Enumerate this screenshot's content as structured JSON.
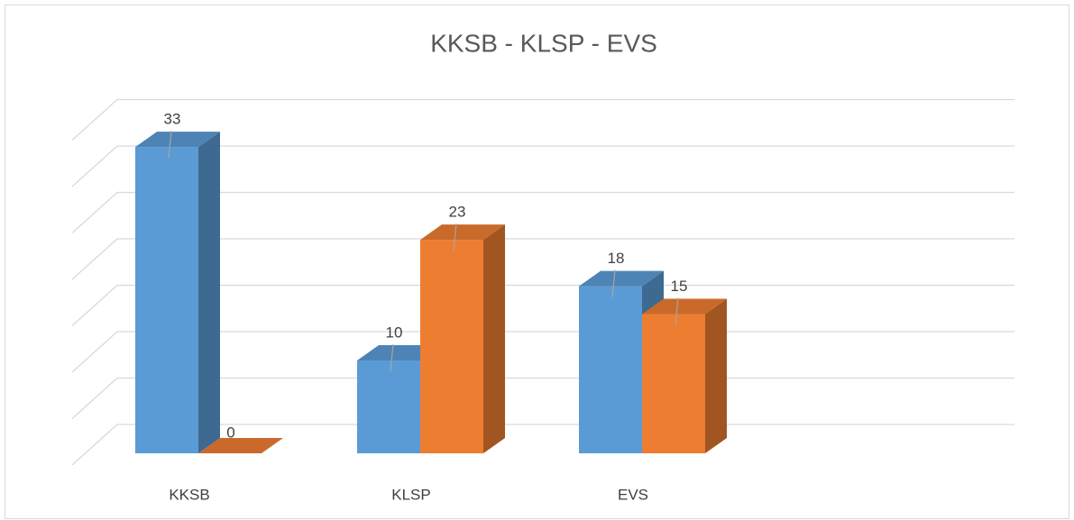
{
  "chart_data": {
    "type": "bar3d",
    "title": "KKSB - KLSP - EVS",
    "categories": [
      "KKSB",
      "KLSP",
      "EVS",
      null
    ],
    "series": [
      {
        "color": "#5b9bd5",
        "values": [
          33,
          10,
          18,
          null
        ]
      },
      {
        "color": "#ed7d31",
        "values": [
          0,
          23,
          15,
          null
        ]
      }
    ],
    "ylim": [
      0,
      35
    ],
    "yticks": [
      0,
      5,
      10,
      15,
      20,
      25,
      30,
      35
    ],
    "grid": true
  }
}
